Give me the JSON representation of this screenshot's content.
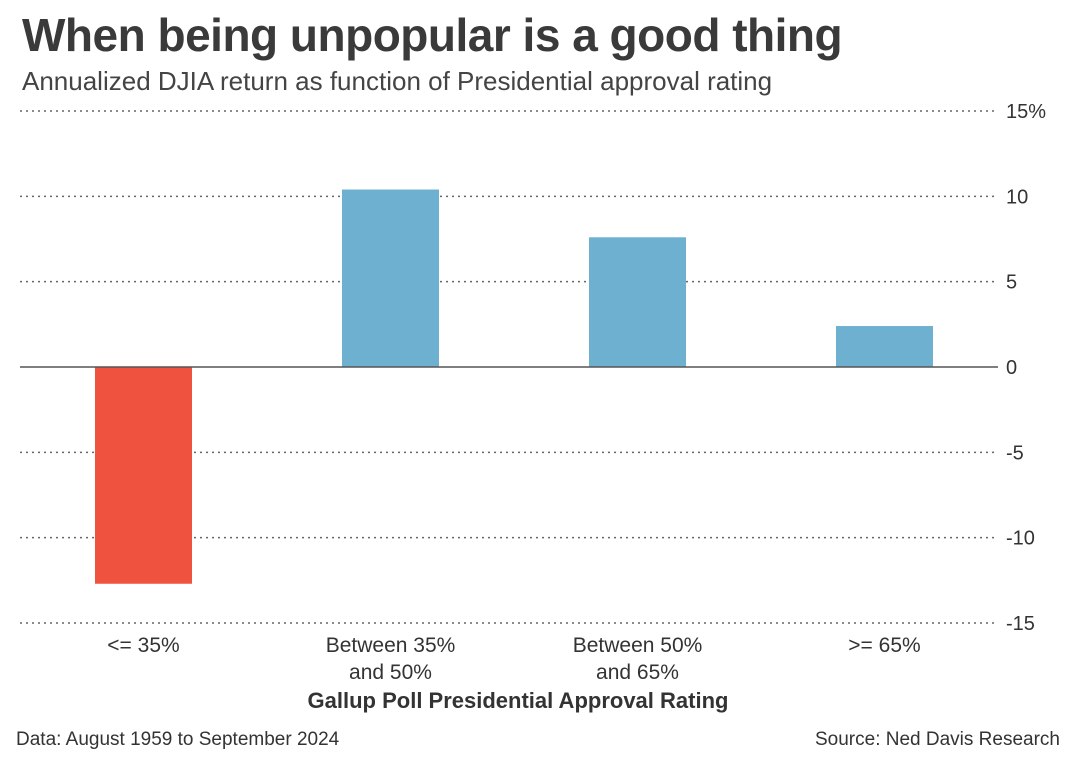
{
  "header": {
    "title": "When being unpopular is a good thing",
    "subtitle": "Annualized DJIA return as function of Presidential approval rating"
  },
  "footer": {
    "data_note": "Data: August 1959 to September 2024",
    "source": "Source: Ned Davis Research"
  },
  "colors": {
    "positive": "#6eb0cf",
    "negative": "#ef5340",
    "grid": "#666666",
    "zero_line": "#555555"
  },
  "chart_data": {
    "type": "bar",
    "title": "When being unpopular is a good thing",
    "subtitle": "Annualized DJIA return as function of Presidential approval rating",
    "xlabel": "Gallup Poll Presidential Approval Rating",
    "ylabel": "",
    "categories": [
      [
        "<= 35%"
      ],
      [
        "Between 35%",
        "and 50%"
      ],
      [
        "Between 50%",
        "and 65%"
      ],
      [
        ">= 65%"
      ]
    ],
    "values": [
      -12.7,
      10.4,
      7.6,
      2.4
    ],
    "ylim": [
      -15,
      15
    ],
    "yticks": [
      {
        "value": 15,
        "label": "15%"
      },
      {
        "value": 10,
        "label": "10"
      },
      {
        "value": 5,
        "label": "5"
      },
      {
        "value": 0,
        "label": "0"
      },
      {
        "value": -5,
        "label": "-5"
      },
      {
        "value": -10,
        "label": "-10"
      },
      {
        "value": -15,
        "label": "-15"
      }
    ],
    "grid": true,
    "axis_position": "right",
    "legend": "none"
  }
}
